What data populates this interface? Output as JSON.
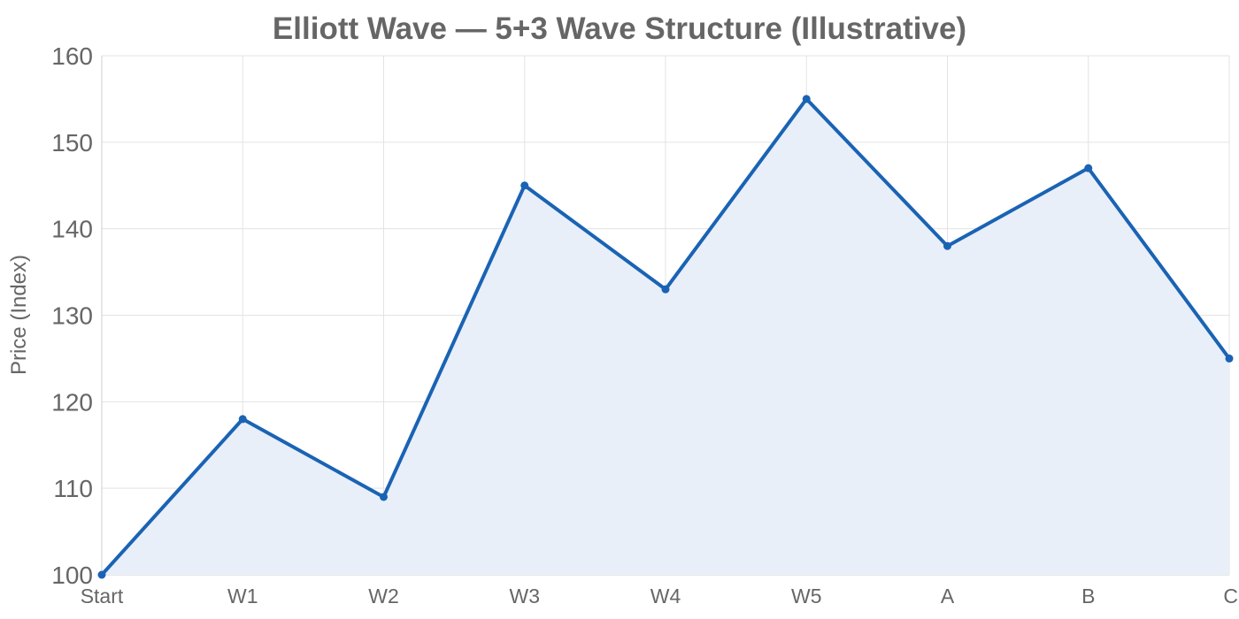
{
  "chart_data": {
    "type": "area",
    "title": "Elliott Wave — 5+3 Wave Structure (Illustrative)",
    "xlabel": "",
    "ylabel": "Price (Index)",
    "categories": [
      "Start",
      "W1",
      "W2",
      "W3",
      "W4",
      "W5",
      "A",
      "B",
      "C"
    ],
    "series": [
      {
        "values": [
          100,
          118,
          109,
          145,
          133,
          155,
          138,
          147,
          125
        ],
        "line_color": "#1a63b4",
        "fill_color": "#e8eff9"
      }
    ],
    "ylim": [
      100,
      160
    ],
    "yticks": [
      100,
      110,
      120,
      130,
      140,
      150,
      160
    ],
    "grid": true,
    "legend": "none"
  }
}
